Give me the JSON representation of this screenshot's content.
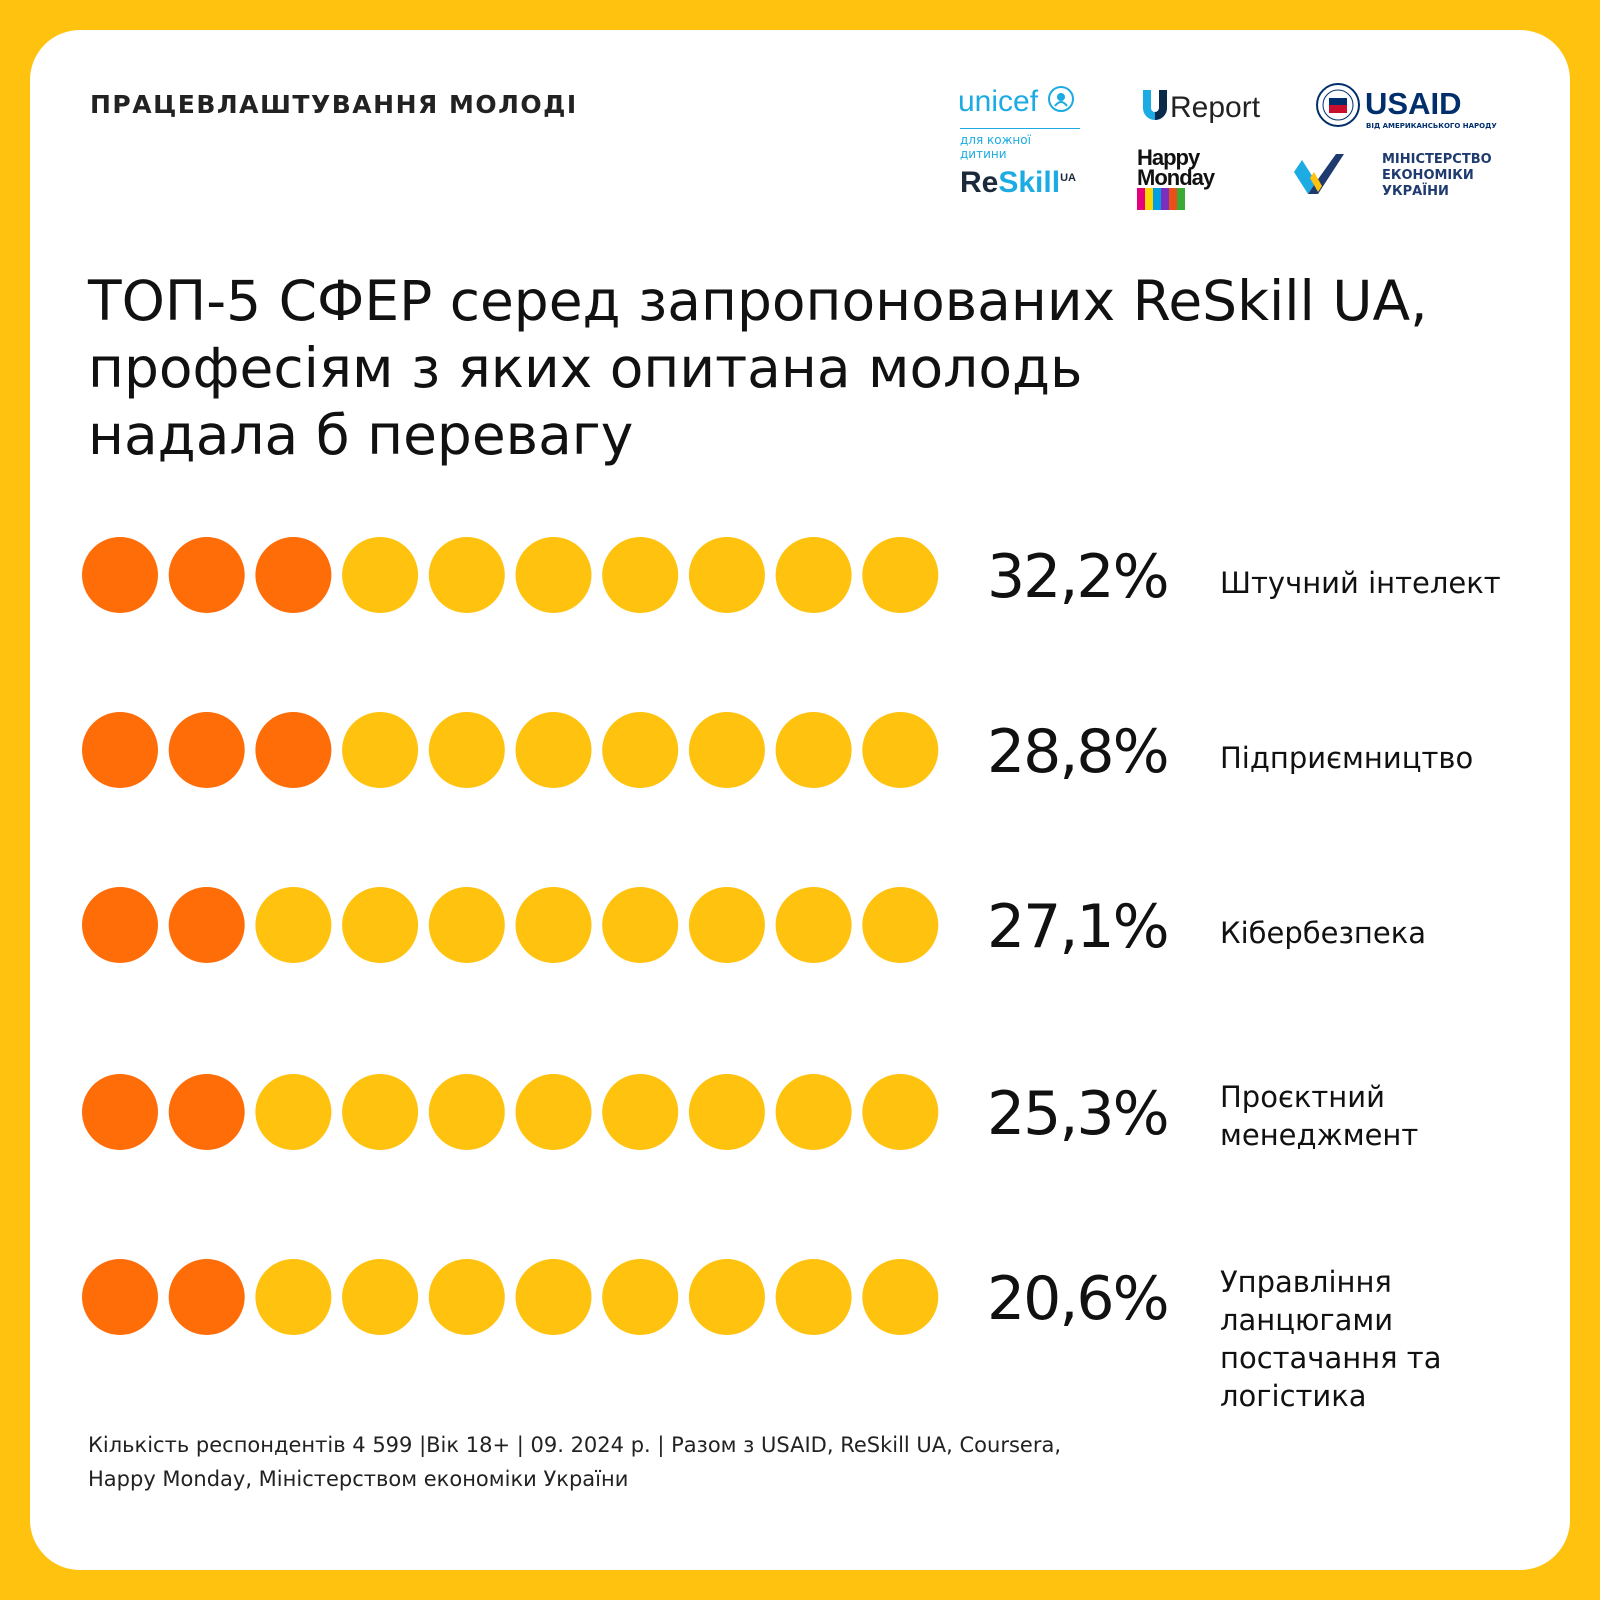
{
  "header": {
    "label": "ПРАЦЕВЛАШТУВАННЯ МОЛОДІ"
  },
  "logos": {
    "unicef": "unicef",
    "unicef_sub": "для кожної дитини",
    "ureport": "Report",
    "usaid": "USAID",
    "usaid_sub": "ВІД АМЕРИКАНСЬКОГО НАРОДУ",
    "reskill_re": "Re",
    "reskill_skill": "Skill",
    "reskill_ua": "UA",
    "happy": "Happy",
    "monday": "Monday",
    "ministry": [
      "МІНІСТЕРСТВО",
      "ЕКОНОМІКИ",
      "УКРАЇНИ"
    ]
  },
  "title": {
    "lines": [
      "ТОП-5 СФЕР серед запропонованих ReSkill UA,",
      "професіям з яких опитана молодь",
      "надала б перевагу"
    ]
  },
  "chart_data": {
    "type": "pictogram",
    "units_per_row": 10,
    "colors": {
      "filled": "#FF6D09",
      "empty": "#FFC20E"
    },
    "rows": [
      {
        "value": 32.2,
        "label": "32,2%",
        "category": [
          "Штучний інтелект"
        ],
        "filled": 3
      },
      {
        "value": 28.8,
        "label": "28,8%",
        "category": [
          "Підприємництво"
        ],
        "filled": 3
      },
      {
        "value": 27.1,
        "label": "27,1%",
        "category": [
          "Кібербезпека"
        ],
        "filled": 2
      },
      {
        "value": 25.3,
        "label": "25,3%",
        "category": [
          "Проєктний",
          "менеджмент"
        ],
        "filled": 2
      },
      {
        "value": 20.6,
        "label": "20,6%",
        "category": [
          "Управління",
          "ланцюгами",
          "постачання та",
          "логістика"
        ],
        "filled": 2
      }
    ]
  },
  "footer": {
    "lines": [
      "Кількість респондентів 4 599 |Вік 18+ | 09. 2024 р. | Разом з USAID, ReSkill UA, Coursera,",
      "Happy Monday, Міністерством економіки України"
    ]
  }
}
